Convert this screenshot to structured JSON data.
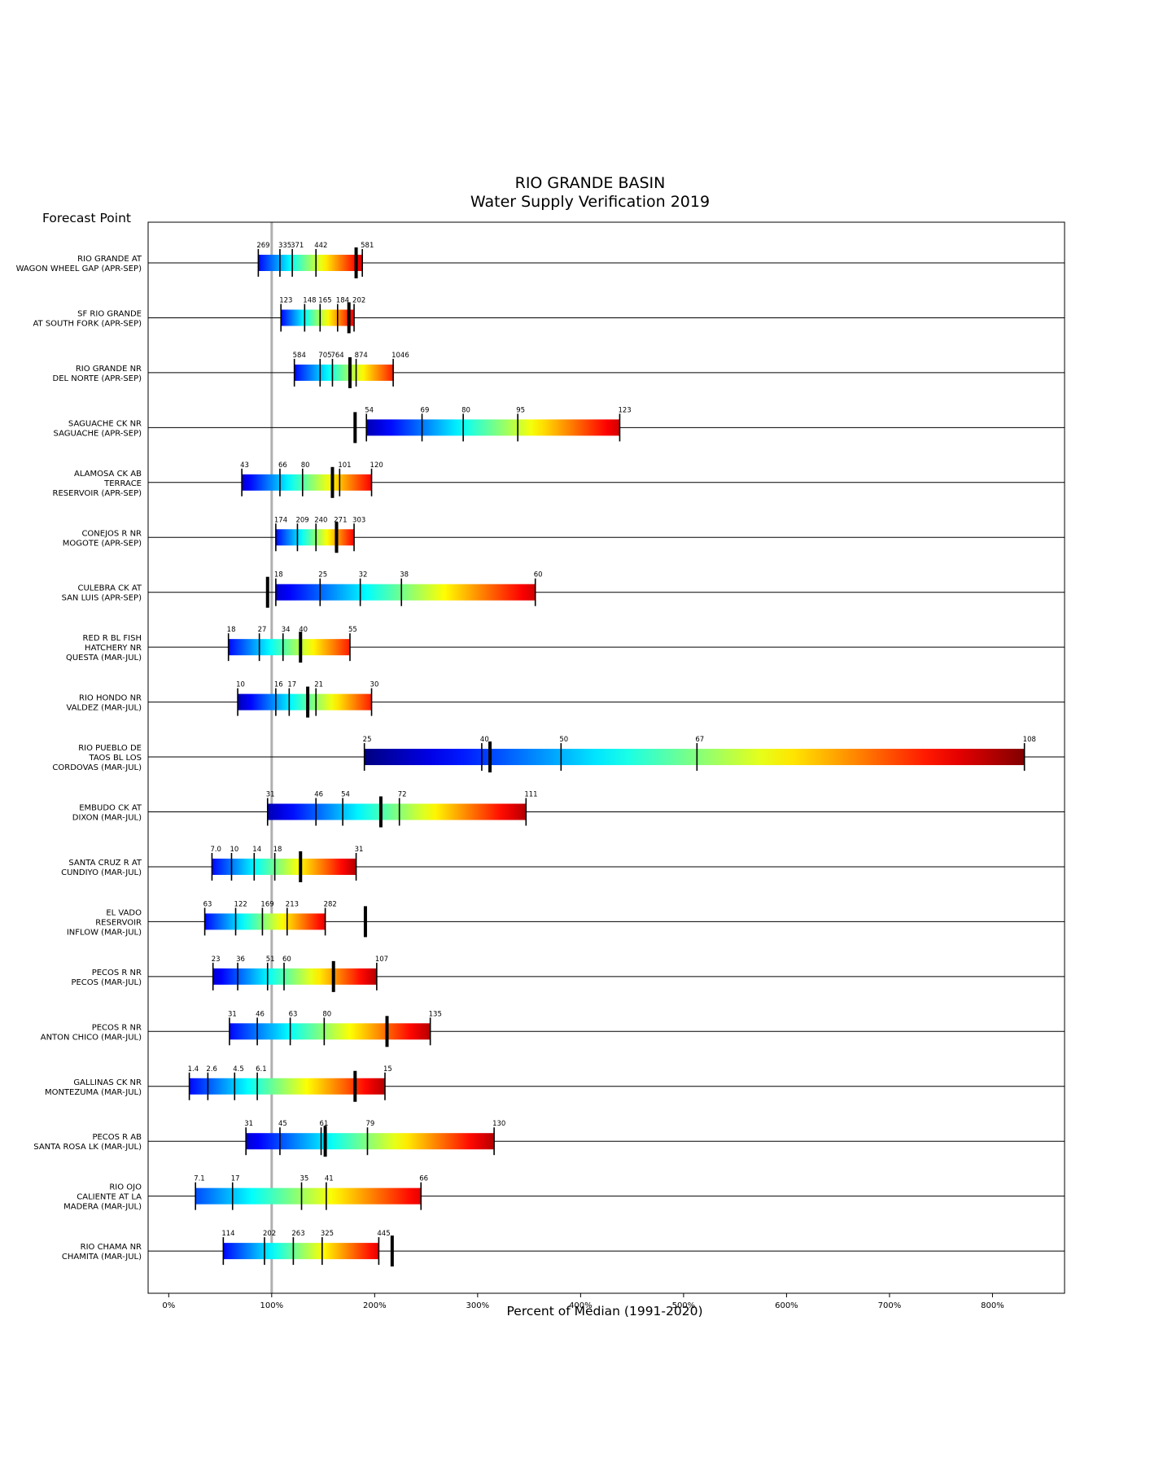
{
  "chart_data": {
    "type": "bar",
    "title": "RIO GRANDE BASIN",
    "subtitle": "Water Supply Verification 2019",
    "ylabel": "Forecast Point",
    "xlabel": "Percent of Median (1991-2020)",
    "xlim": [
      -20,
      870
    ],
    "xticks": [
      0,
      100,
      200,
      300,
      400,
      500,
      600,
      700,
      800
    ],
    "xtick_labels": [
      "0%",
      "100%",
      "200%",
      "300%",
      "400%",
      "500%",
      "600%",
      "700%",
      "800%"
    ],
    "median_reference_pct": 100,
    "grid": false,
    "legend": "none",
    "colormap": "jet (red = low exceedance forecast, dark blue = high)",
    "colormap_stops": [
      "#7f0000",
      "#ff0000",
      "#ff8000",
      "#ffff00",
      "#80ff80",
      "#00ffff",
      "#0080ff",
      "#0000ff",
      "#00007f"
    ],
    "rows": [
      {
        "label": [
          "RIO GRANDE AT",
          "WAGON WHEEL GAP (APR-SEP)"
        ],
        "cmap_range": [
          0.13,
          0.92
        ],
        "ticks": [
          {
            "pct": 87,
            "value": "269"
          },
          {
            "pct": 108,
            "value": "335"
          },
          {
            "pct": 120,
            "value": "371"
          },
          {
            "pct": 143,
            "value": "442"
          },
          {
            "pct": 188,
            "value": "581"
          }
        ],
        "observed_pct": 182
      },
      {
        "label": [
          "SF RIO GRANDE",
          "AT SOUTH FORK (APR-SEP)"
        ],
        "cmap_range": [
          0.13,
          0.9
        ],
        "ticks": [
          {
            "pct": 109,
            "value": "123"
          },
          {
            "pct": 132,
            "value": "148"
          },
          {
            "pct": 147,
            "value": "165"
          },
          {
            "pct": 164,
            "value": "184"
          },
          {
            "pct": 180,
            "value": "202"
          }
        ],
        "observed_pct": 175
      },
      {
        "label": [
          "RIO GRANDE NR",
          "DEL NORTE (APR-SEP)"
        ],
        "cmap_range": [
          0.13,
          0.85
        ],
        "ticks": [
          {
            "pct": 122,
            "value": "584"
          },
          {
            "pct": 147,
            "value": "705"
          },
          {
            "pct": 159,
            "value": "764"
          },
          {
            "pct": 182,
            "value": "874"
          },
          {
            "pct": 218,
            "value": "1046"
          }
        ],
        "observed_pct": 176
      },
      {
        "label": [
          "SAGUACHE CK NR",
          "SAGUACHE (APR-SEP)"
        ],
        "cmap_range": [
          0.05,
          0.92
        ],
        "ticks": [
          {
            "pct": 192,
            "value": "54"
          },
          {
            "pct": 246,
            "value": "69"
          },
          {
            "pct": 286,
            "value": "80"
          },
          {
            "pct": 339,
            "value": "95"
          },
          {
            "pct": 438,
            "value": "123"
          }
        ],
        "observed_pct": 181
      },
      {
        "label": [
          "ALAMOSA CK AB",
          "TERRACE",
          "RESERVOIR (APR-SEP)"
        ],
        "cmap_range": [
          0.08,
          0.88
        ],
        "ticks": [
          {
            "pct": 71,
            "value": "43"
          },
          {
            "pct": 108,
            "value": "66"
          },
          {
            "pct": 130,
            "value": "80"
          },
          {
            "pct": 166,
            "value": "101"
          },
          {
            "pct": 197,
            "value": "120"
          }
        ],
        "observed_pct": 159
      },
      {
        "label": [
          "CONEJOS R NR",
          "MOGOTE (APR-SEP)"
        ],
        "cmap_range": [
          0.13,
          0.88
        ],
        "ticks": [
          {
            "pct": 104,
            "value": "174"
          },
          {
            "pct": 125,
            "value": "209"
          },
          {
            "pct": 143,
            "value": "240"
          },
          {
            "pct": 162,
            "value": "271"
          },
          {
            "pct": 180,
            "value": "303"
          }
        ],
        "observed_pct": 163
      },
      {
        "label": [
          "CULEBRA CK AT",
          "SAN LUIS (APR-SEP)"
        ],
        "cmap_range": [
          0.08,
          0.92
        ],
        "ticks": [
          {
            "pct": 104,
            "value": "18"
          },
          {
            "pct": 147,
            "value": "25"
          },
          {
            "pct": 186,
            "value": "32"
          },
          {
            "pct": 226,
            "value": "38"
          },
          {
            "pct": 356,
            "value": "60"
          }
        ],
        "observed_pct": 96
      },
      {
        "label": [
          "RED R BL FISH",
          "HATCHERY NR",
          "QUESTA (MAR-JUL)"
        ],
        "cmap_range": [
          0.13,
          0.85
        ],
        "ticks": [
          {
            "pct": 58,
            "value": "18"
          },
          {
            "pct": 88,
            "value": "27"
          },
          {
            "pct": 111,
            "value": "34"
          },
          {
            "pct": 128,
            "value": "40"
          },
          {
            "pct": 176,
            "value": "55"
          }
        ],
        "observed_pct": 128
      },
      {
        "label": [
          "RIO HONDO NR",
          "VALDEZ (MAR-JUL)"
        ],
        "cmap_range": [
          0.05,
          0.85
        ],
        "ticks": [
          {
            "pct": 67,
            "value": "10"
          },
          {
            "pct": 104,
            "value": "16"
          },
          {
            "pct": 117,
            "value": "17"
          },
          {
            "pct": 143,
            "value": "21"
          },
          {
            "pct": 197,
            "value": "30"
          }
        ],
        "observed_pct": 135
      },
      {
        "label": [
          "RIO PUEBLO DE",
          "TAOS BL LOS",
          "CORDOVAS (MAR-JUL)"
        ],
        "cmap_range": [
          0.0,
          1.0
        ],
        "ticks": [
          {
            "pct": 190,
            "value": "25"
          },
          {
            "pct": 304,
            "value": "40"
          },
          {
            "pct": 381,
            "value": "50"
          },
          {
            "pct": 513,
            "value": "67"
          },
          {
            "pct": 831,
            "value": "108"
          }
        ],
        "observed_pct": 312
      },
      {
        "label": [
          "EMBUDO CK AT",
          "DIXON (MAR-JUL)"
        ],
        "cmap_range": [
          0.05,
          0.95
        ],
        "ticks": [
          {
            "pct": 96,
            "value": "31"
          },
          {
            "pct": 143,
            "value": "46"
          },
          {
            "pct": 169,
            "value": "54"
          },
          {
            "pct": 224,
            "value": "72"
          },
          {
            "pct": 347,
            "value": "111"
          }
        ],
        "observed_pct": 206
      },
      {
        "label": [
          "SANTA CRUZ R AT",
          "CUNDIYO (MAR-JUL)"
        ],
        "cmap_range": [
          0.13,
          0.95
        ],
        "ticks": [
          {
            "pct": 42,
            "value": "7.0"
          },
          {
            "pct": 61,
            "value": "10"
          },
          {
            "pct": 83,
            "value": "14"
          },
          {
            "pct": 103,
            "value": "18"
          },
          {
            "pct": 182,
            "value": "31"
          }
        ],
        "observed_pct": 128
      },
      {
        "label": [
          "EL VADO",
          "RESERVOIR",
          "INFLOW (MAR-JUL)"
        ],
        "cmap_range": [
          0.13,
          0.9
        ],
        "ticks": [
          {
            "pct": 35,
            "value": "63"
          },
          {
            "pct": 65,
            "value": "122"
          },
          {
            "pct": 91,
            "value": "169"
          },
          {
            "pct": 115,
            "value": "213"
          },
          {
            "pct": 152,
            "value": "282"
          }
        ],
        "observed_pct": 191
      },
      {
        "label": [
          "PECOS R NR",
          "PECOS (MAR-JUL)"
        ],
        "cmap_range": [
          0.08,
          0.95
        ],
        "ticks": [
          {
            "pct": 43,
            "value": "23"
          },
          {
            "pct": 67,
            "value": "36"
          },
          {
            "pct": 96,
            "value": "51"
          },
          {
            "pct": 112,
            "value": "60"
          },
          {
            "pct": 202,
            "value": "107"
          }
        ],
        "observed_pct": 160
      },
      {
        "label": [
          "PECOS R NR",
          "ANTON CHICO (MAR-JUL)"
        ],
        "cmap_range": [
          0.13,
          0.95
        ],
        "ticks": [
          {
            "pct": 59,
            "value": "31"
          },
          {
            "pct": 86,
            "value": "46"
          },
          {
            "pct": 118,
            "value": "63"
          },
          {
            "pct": 151,
            "value": "80"
          },
          {
            "pct": 254,
            "value": "135"
          }
        ],
        "observed_pct": 212
      },
      {
        "label": [
          "GALLINAS CK NR",
          "MONTEZUMA (MAR-JUL)"
        ],
        "cmap_range": [
          0.13,
          0.95
        ],
        "ticks": [
          {
            "pct": 20,
            "value": "1.4"
          },
          {
            "pct": 38,
            "value": "2.6"
          },
          {
            "pct": 64,
            "value": "4.5"
          },
          {
            "pct": 86,
            "value": "6.1"
          },
          {
            "pct": 210,
            "value": "15"
          }
        ],
        "observed_pct": 181
      },
      {
        "label": [
          "PECOS R AB",
          "SANTA ROSA LK (MAR-JUL)"
        ],
        "cmap_range": [
          0.08,
          0.95
        ],
        "ticks": [
          {
            "pct": 75,
            "value": "31"
          },
          {
            "pct": 108,
            "value": "45"
          },
          {
            "pct": 148,
            "value": "61"
          },
          {
            "pct": 193,
            "value": "79"
          },
          {
            "pct": 316,
            "value": "130"
          }
        ],
        "observed_pct": 152
      },
      {
        "label": [
          "RIO OJO",
          "CALIENTE AT LA",
          "MADERA (MAR-JUL)"
        ],
        "cmap_range": [
          0.2,
          0.9
        ],
        "ticks": [
          {
            "pct": 26,
            "value": "7.1"
          },
          {
            "pct": 62,
            "value": "17"
          },
          {
            "pct": 129,
            "value": "35"
          },
          {
            "pct": 153,
            "value": "41"
          },
          {
            "pct": 245,
            "value": "66"
          }
        ],
        "observed_pct": null
      },
      {
        "label": [
          "RIO CHAMA NR",
          "CHAMITA (MAR-JUL)"
        ],
        "cmap_range": [
          0.13,
          0.9
        ],
        "ticks": [
          {
            "pct": 53,
            "value": "114"
          },
          {
            "pct": 93,
            "value": "202"
          },
          {
            "pct": 121,
            "value": "263"
          },
          {
            "pct": 149,
            "value": "325"
          },
          {
            "pct": 204,
            "value": "445"
          }
        ],
        "observed_pct": 217
      }
    ]
  }
}
